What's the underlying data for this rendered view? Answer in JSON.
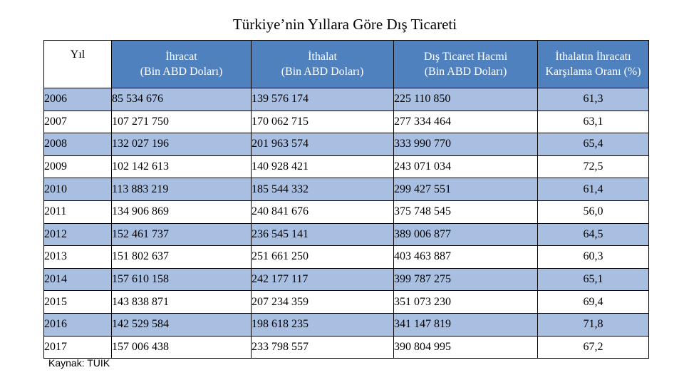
{
  "title": "Türkiye’nin Yıllara Göre Dış Ticareti",
  "headers": [
    {
      "line1": "Yıl",
      "line2": ""
    },
    {
      "line1": "İhracat",
      "line2": "(Bin ABD Doları)"
    },
    {
      "line1": "İthalat",
      "line2": "(Bin ABD Doları)"
    },
    {
      "line1": "Dış Ticaret Hacmi",
      "line2": "(Bin ABD Doları)"
    },
    {
      "line1": "İthalatın İhracatı",
      "line2": "Karşılama Oranı (%)"
    }
  ],
  "rows": [
    {
      "year": "2006",
      "export": "85 534 676",
      "import": "139 576 174",
      "volume": "225 110 850",
      "ratio": "61,3"
    },
    {
      "year": "2007",
      "export": "107 271 750",
      "import": "170 062 715",
      "volume": "277 334 464",
      "ratio": "63,1"
    },
    {
      "year": "2008",
      "export": "132 027 196",
      "import": "201 963 574",
      "volume": "333 990 770",
      "ratio": "65,4"
    },
    {
      "year": "2009",
      "export": "102 142 613",
      "import": "140 928 421",
      "volume": "243 071 034",
      "ratio": "72,5"
    },
    {
      "year": "2010",
      "export": "113 883 219",
      "import": "185 544 332",
      "volume": "299 427 551",
      "ratio": "61,4"
    },
    {
      "year": "2011",
      "export": "134 906 869",
      "import": "240 841 676",
      "volume": "375 748 545",
      "ratio": "56,0"
    },
    {
      "year": "2012",
      "export": "152 461 737",
      "import": "236 545 141",
      "volume": "389 006 877",
      "ratio": "64,5"
    },
    {
      "year": "2013",
      "export": "151 802 637",
      "import": "251 661 250",
      "volume": "403 463 887",
      "ratio": "60,3"
    },
    {
      "year": "2014",
      "export": "157 610 158",
      "import": "242 177 117",
      "volume": "399 787 275",
      "ratio": "65,1"
    },
    {
      "year": "2015",
      "export": "143 838 871",
      "import": "207 234 359",
      "volume": "351 073 230",
      "ratio": "69,4"
    },
    {
      "year": "2016",
      "export": "142 529 584",
      "import": "198 618 235",
      "volume": "341 147 819",
      "ratio": "71,8"
    },
    {
      "year": "2017",
      "export": "157 006 438",
      "import": "233 798 557",
      "volume": "390 804 995",
      "ratio": "67,2"
    }
  ],
  "source": "Kaynak: TÜİK",
  "colors": {
    "header_bg": "#4e81bd",
    "odd_row_bg": "#a8bfe2",
    "even_row_bg": "#ffffff"
  }
}
